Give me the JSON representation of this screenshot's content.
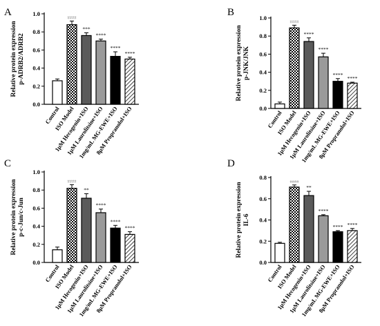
{
  "categories": [
    "Control",
    "ISO Model",
    "1μM Hecogenin+ISO",
    "1μM Laurolitsine+ISO",
    "1mg/mL MG-EWE+ISO",
    "8μM Propranolol+ISO"
  ],
  "panel_labels": [
    "A",
    "B",
    "C",
    "D"
  ],
  "colors": {
    "bar_stroke": "#000000",
    "dark_gray": "#5a5a5a",
    "mid_gray": "#9a9a9a",
    "black": "#000000",
    "hatch_stroke": "#111111"
  },
  "chart_data": [
    {
      "type": "bar",
      "panel": "A",
      "ylabel_top": "Relative protein expression",
      "ylabel_bottom": "p-ADRB2/ADRB2",
      "ylim": [
        0,
        1.0
      ],
      "yticks": [
        "0.0",
        "0.2",
        "0.4",
        "0.6",
        "0.8",
        "1.0"
      ],
      "values": [
        0.26,
        0.88,
        0.76,
        0.7,
        0.53,
        0.5
      ],
      "errors": [
        0.02,
        0.04,
        0.03,
        0.02,
        0.05,
        0.02
      ],
      "significance": [
        "",
        "####",
        "***",
        "****",
        "****",
        "****"
      ]
    },
    {
      "type": "bar",
      "panel": "B",
      "ylabel_top": "Relative protein expression",
      "ylabel_bottom": "p-JNK/JNK",
      "ylim": [
        0,
        1.0
      ],
      "yticks": [
        "0.0",
        "0.2",
        "0.4",
        "0.6",
        "0.8",
        "1.0"
      ],
      "values": [
        0.05,
        0.89,
        0.74,
        0.57,
        0.3,
        0.28
      ],
      "errors": [
        0.02,
        0.03,
        0.04,
        0.04,
        0.03,
        0.01
      ],
      "significance": [
        "",
        "####",
        "****",
        "****",
        "****",
        "****"
      ]
    },
    {
      "type": "bar",
      "panel": "C",
      "ylabel_top": "Relative protein expression",
      "ylabel_bottom": "p-c-Jun/c-Jun",
      "ylim": [
        0,
        1.0
      ],
      "yticks": [
        "0.0",
        "0.2",
        "0.4",
        "0.6",
        "0.8",
        "1.0"
      ],
      "values": [
        0.14,
        0.82,
        0.71,
        0.55,
        0.38,
        0.31
      ],
      "errors": [
        0.03,
        0.04,
        0.05,
        0.04,
        0.03,
        0.03
      ],
      "significance": [
        "",
        "####",
        "**",
        "****",
        "****",
        "****"
      ]
    },
    {
      "type": "bar",
      "panel": "D",
      "ylabel_top": "Relative protein expression",
      "ylabel_bottom": "IL-6",
      "ylim": [
        0,
        0.8
      ],
      "yticks": [
        "0.0",
        "0.2",
        "0.4",
        "0.6",
        "0.8"
      ],
      "values": [
        0.18,
        0.71,
        0.63,
        0.44,
        0.29,
        0.3
      ],
      "errors": [
        0.01,
        0.02,
        0.04,
        0.01,
        0.01,
        0.02
      ],
      "significance": [
        "",
        "####",
        "**",
        "****",
        "****",
        "****"
      ]
    }
  ]
}
